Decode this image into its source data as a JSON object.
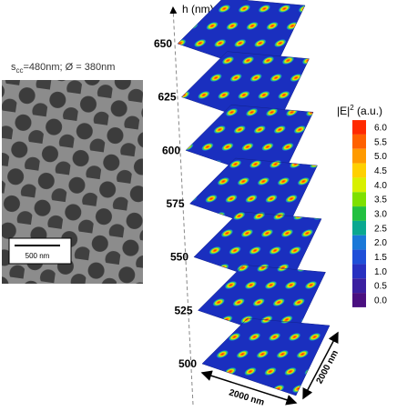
{
  "sem": {
    "caption": {
      "symbol": "s",
      "subscript": "cc",
      "rest": "=480nm; Ø = 380nm"
    },
    "scale_bar": "500 nm"
  },
  "height_axis": {
    "label": "h (nm)",
    "ticks": [
      500,
      525,
      550,
      575,
      600,
      625,
      650
    ]
  },
  "colorbar": {
    "title": {
      "main": "|E|",
      "superscript": "2",
      "unit": " (a.u.)"
    },
    "ticks": [
      {
        "value": 6,
        "label": "6.0"
      },
      {
        "value": 5.5,
        "label": "5.5"
      },
      {
        "value": 5,
        "label": "5.0"
      },
      {
        "value": 4.5,
        "label": "4.5"
      },
      {
        "value": 4,
        "label": "4.0"
      },
      {
        "value": 3.5,
        "label": "3.5"
      },
      {
        "value": 3,
        "label": "3.0"
      },
      {
        "value": 2.5,
        "label": "2.5"
      },
      {
        "value": 2,
        "label": "2.0"
      },
      {
        "value": 1.5,
        "label": "1.5"
      },
      {
        "value": 1,
        "label": "1.0"
      },
      {
        "value": 0.5,
        "label": "0.5"
      },
      {
        "value": 0,
        "label": "0.0"
      }
    ],
    "colors": [
      "#ff2a00",
      "#ff6000",
      "#ff9a00",
      "#ffd000",
      "#d8f000",
      "#7ee000",
      "#22c040",
      "#0aa890",
      "#1a78d8",
      "#1f4fd8",
      "#2830c0",
      "#3a1fa0",
      "#4a1080"
    ]
  },
  "dimensions": {
    "front": "2000 nm",
    "side": "2000 nm"
  }
}
